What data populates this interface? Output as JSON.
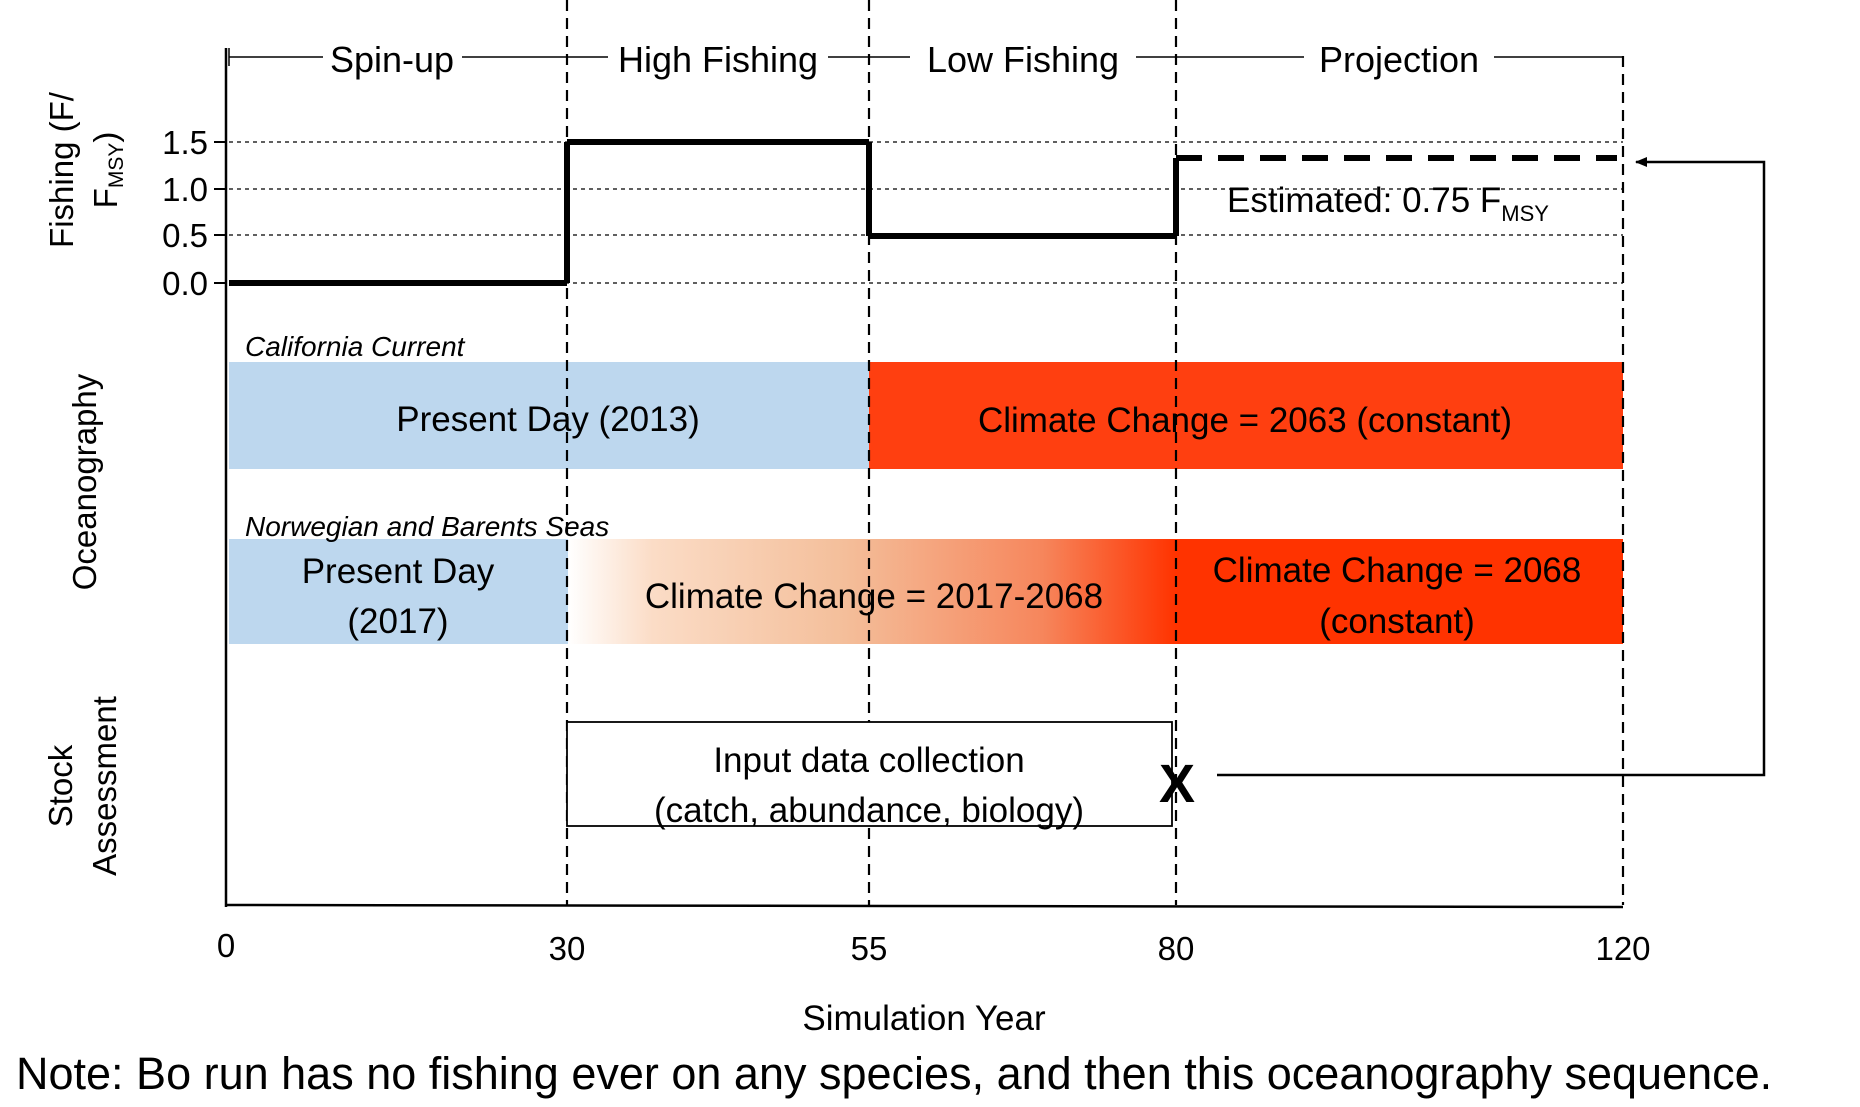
{
  "phases": {
    "spinup": "Spin-up",
    "high": "High Fishing",
    "low": "Low Fishing",
    "projection": "Projection"
  },
  "rows": {
    "fishing_label_line1": "Fishing (F/",
    "fishing_label_line2_main": "F",
    "fishing_label_line2_sub": "MSY",
    "fishing_label_line2_end": ")",
    "oceanography": "Oceanography",
    "stock_line1": "Stock",
    "stock_line2": "Assessment"
  },
  "fishing_axis": {
    "ticks": [
      "0.0",
      "0.5",
      "1.0",
      "1.5"
    ],
    "tick_values": [
      0.0,
      0.5,
      1.0,
      1.5
    ]
  },
  "fishing_levels": [
    {
      "phase": "Spin-up",
      "start": 0,
      "end": 30,
      "value": 0.0
    },
    {
      "phase": "High Fishing",
      "start": 30,
      "end": 55,
      "value": 1.5
    },
    {
      "phase": "Low Fishing",
      "start": 55,
      "end": 80,
      "value": 0.5
    },
    {
      "phase": "Projection",
      "start": 80,
      "end": 120,
      "value": 1.33,
      "dashed": true
    }
  ],
  "estimated": {
    "text": "Estimated: 0.75 F",
    "sub": "MSY"
  },
  "california": {
    "region": "California Current",
    "present": "Present Day (2013)",
    "climate": "Climate Change = 2063 (constant)",
    "colors": {
      "present": "#bdd7ee",
      "climate": "#ff3f10"
    }
  },
  "norwegian": {
    "region": "Norwegian and Barents Seas",
    "present_line1": "Present Day",
    "present_line2": "(2017)",
    "transition": "Climate Change = 2017-2068",
    "climate_line1": "Climate Change = 2068",
    "climate_line2": "(constant)",
    "colors": {
      "present": "#bdd7ee",
      "gradient_start": "#ffffff",
      "gradient_mid": "#f4c09e",
      "climate": "#ff3300"
    }
  },
  "stock": {
    "line1": "Input data collection",
    "line2": "(catch, abundance, biology)",
    "marker": "X"
  },
  "x_axis": {
    "ticks": [
      "0",
      "30",
      "55",
      "80",
      "120"
    ],
    "tick_values": [
      0,
      30,
      55,
      80,
      120
    ],
    "label": "Simulation Year"
  },
  "note": "Note: Bo run has no fishing ever on any species, and then this oceanography sequence."
}
